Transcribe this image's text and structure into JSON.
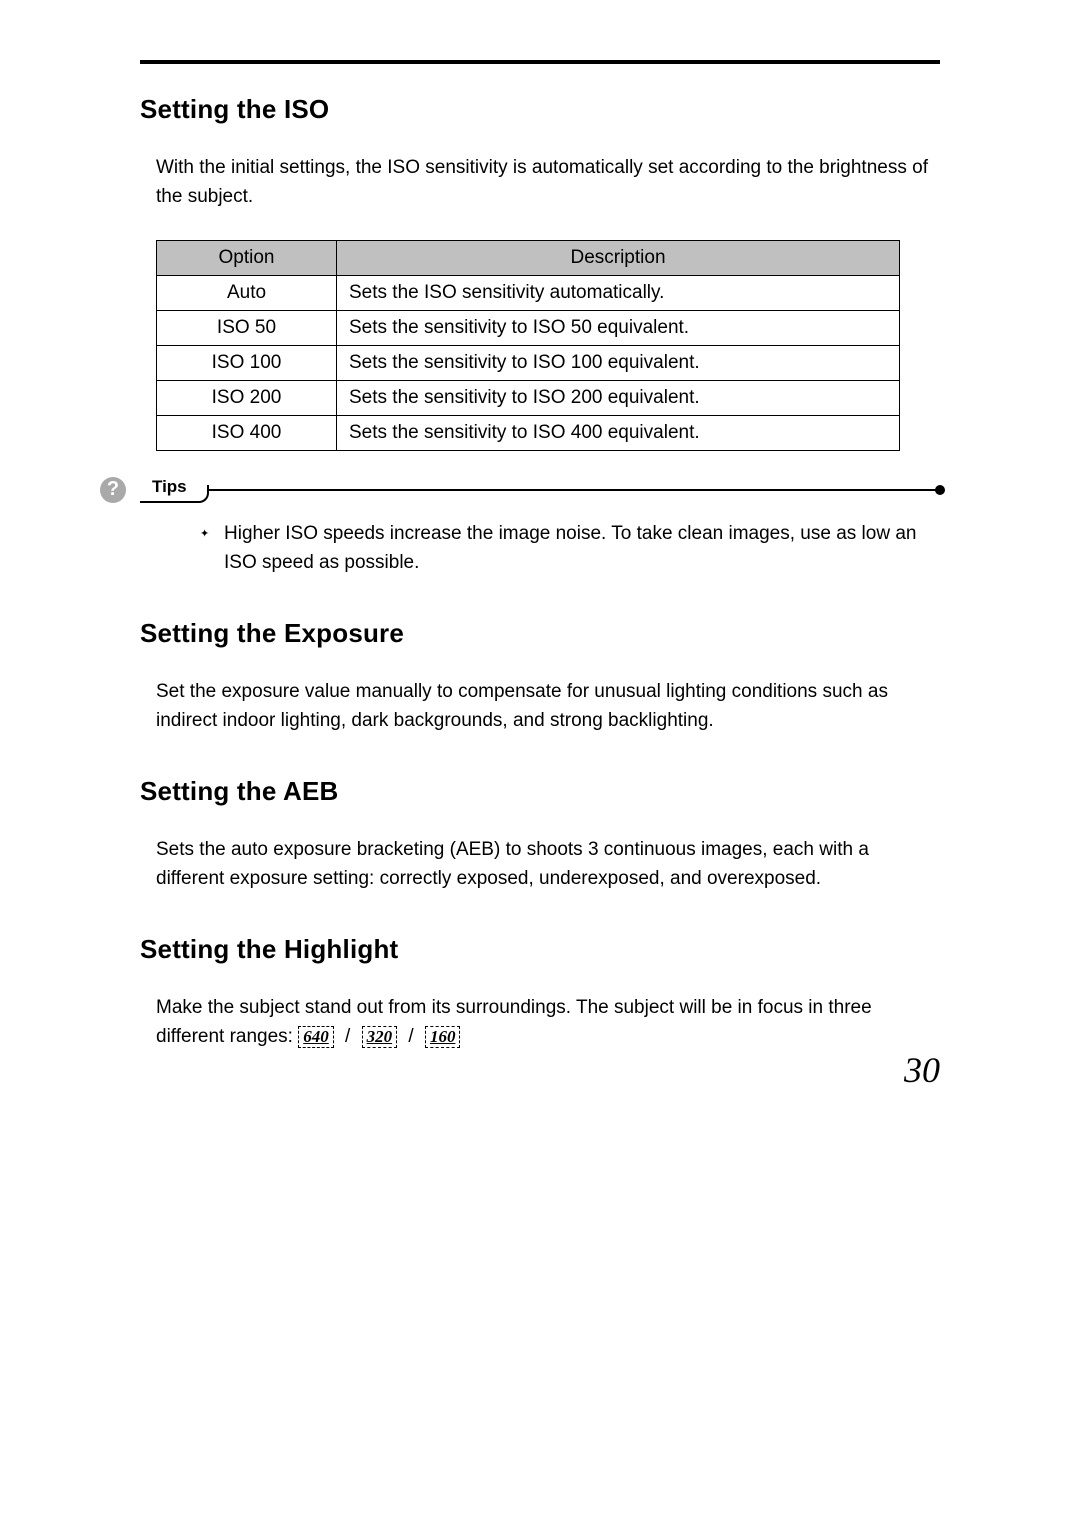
{
  "page_number": "30",
  "sections": {
    "iso": {
      "heading": "Setting the ISO",
      "intro": "With the initial settings, the ISO sensitivity is automatically set according to the brightness of the subject.",
      "table": {
        "headers": {
          "option": "Option",
          "description": "Description"
        },
        "rows": [
          {
            "option": "Auto",
            "description": "Sets the ISO sensitivity automatically."
          },
          {
            "option": "ISO 50",
            "description": "Sets the sensitivity to ISO 50 equivalent."
          },
          {
            "option": "ISO 100",
            "description": "Sets the sensitivity to ISO 100 equivalent."
          },
          {
            "option": "ISO 200",
            "description": "Sets the sensitivity to ISO 200 equivalent."
          },
          {
            "option": "ISO 400",
            "description": "Sets the sensitivity to ISO 400 equivalent."
          }
        ]
      },
      "tips_label": "Tips",
      "tips_icon_glyph": "?",
      "tips": [
        "Higher ISO speeds increase the image noise. To take clean images, use as low an ISO speed as possible."
      ]
    },
    "exposure": {
      "heading": "Setting the Exposure",
      "body": "Set the exposure value manually to compensate for unusual lighting conditions such as indirect indoor lighting, dark backgrounds, and strong backlighting."
    },
    "aeb": {
      "heading": "Setting the AEB",
      "body": "Sets the auto exposure bracketing (AEB) to shoots 3 continuous images, each with a different exposure setting: correctly exposed, underexposed, and overexposed."
    },
    "highlight": {
      "heading": "Setting the Highlight",
      "body_prefix": "Make the subject stand out from its surroundings. The subject will be in focus in three different ranges: ",
      "ranges": [
        "640",
        "320",
        "160"
      ],
      "slash": "/"
    }
  },
  "colors": {
    "page_bg": "#ffffff",
    "text": "#000000",
    "table_header_bg": "#c0c0c0",
    "tips_icon_bg": "#a9a9a9"
  }
}
